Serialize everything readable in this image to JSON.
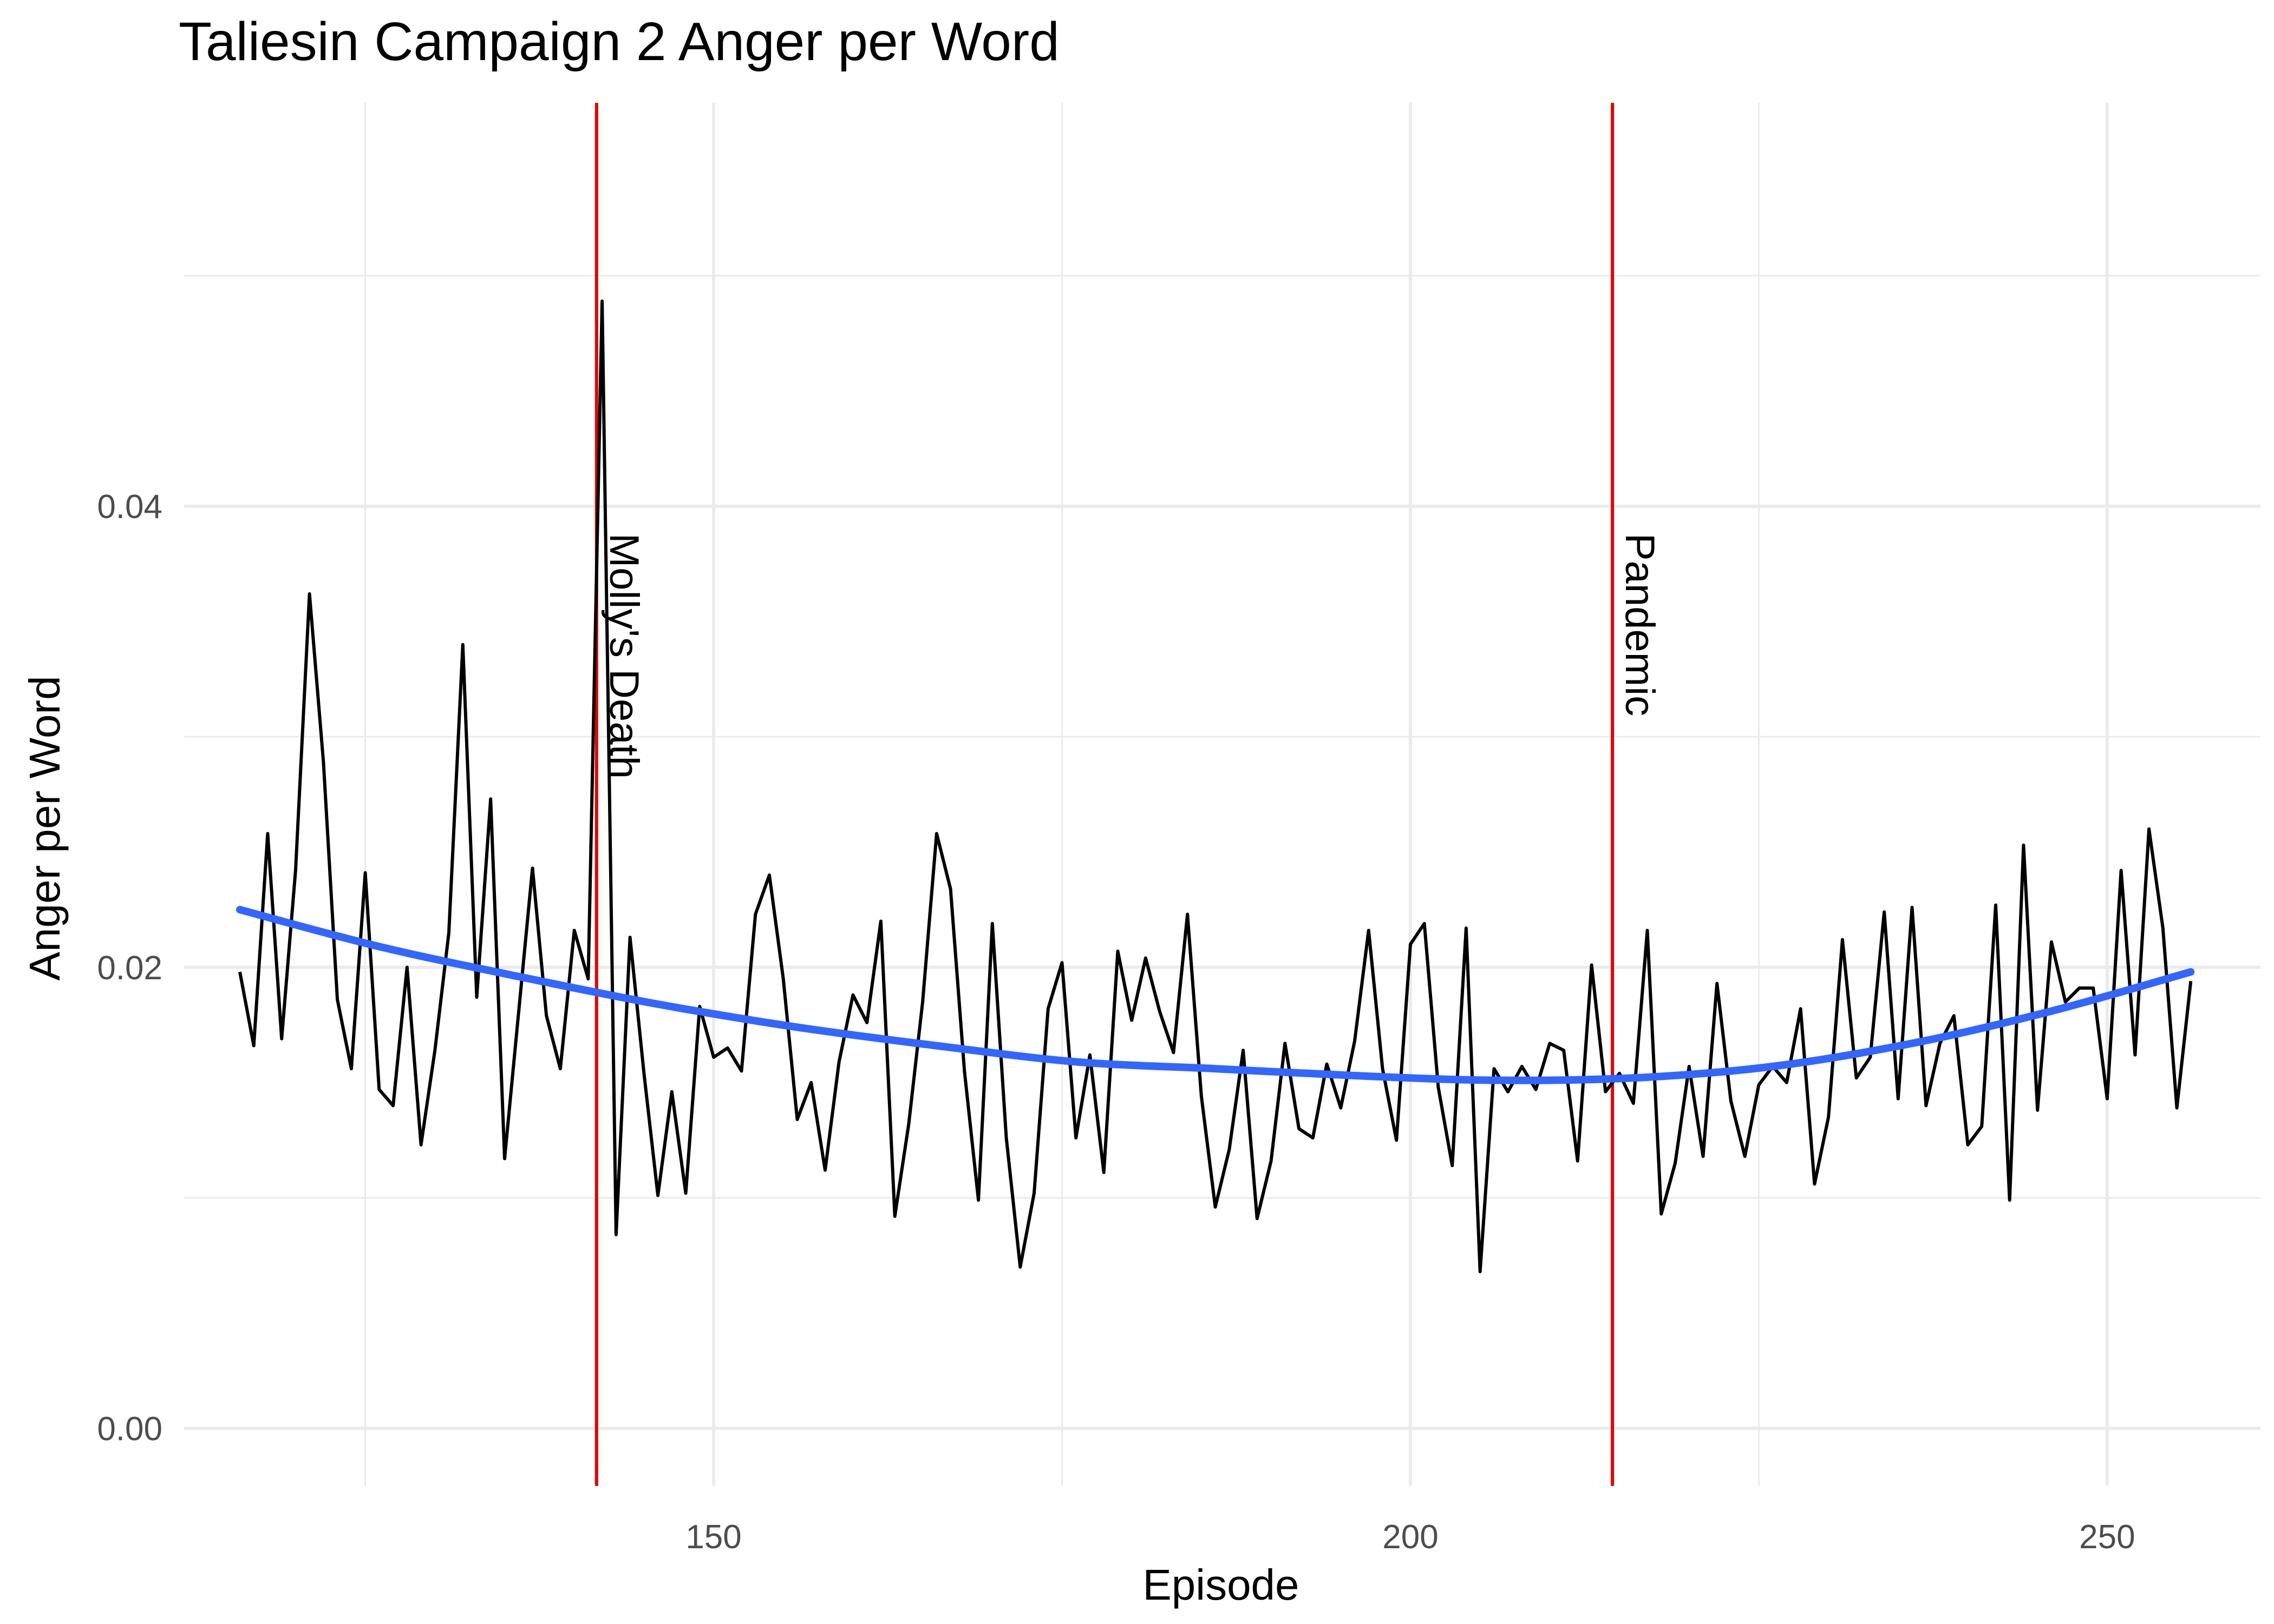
{
  "chart_data": {
    "type": "line",
    "title": "Taliesin Campaign 2 Anger per Word",
    "xlabel": "Episode",
    "ylabel": "Anger per Word",
    "xlim": [
      112,
      261
    ],
    "ylim": [
      -0.0025,
      0.0575
    ],
    "xticks": [
      150,
      200,
      250
    ],
    "yticks": [
      0.0,
      0.02,
      0.04
    ],
    "ytick_labels": [
      "0.00",
      "0.02",
      "0.04"
    ],
    "xminor": [
      125,
      175,
      225
    ],
    "yminor": [
      0.01,
      0.03,
      0.05
    ],
    "grid": true,
    "legend": "none",
    "colors": {
      "series": "#000000",
      "smooth": "#3366ff",
      "events": "#e60000",
      "grid": "#ebebeb"
    },
    "events": [
      {
        "x": 141.6,
        "label": "Molly's Death"
      },
      {
        "x": 214.5,
        "label": "Pandemic"
      }
    ],
    "series": [
      {
        "x": [
          116,
          117,
          118,
          119,
          120,
          121,
          122,
          123,
          124,
          125,
          126,
          127,
          128,
          129,
          130,
          131,
          132,
          133,
          134,
          135,
          136,
          137,
          138,
          139,
          140,
          141,
          142,
          143,
          144,
          145,
          146,
          147,
          148,
          149,
          150,
          151,
          152,
          153,
          154,
          155,
          156,
          157,
          158,
          159,
          160,
          161,
          162,
          163,
          164,
          165,
          166,
          167,
          168,
          169,
          170,
          171,
          172,
          173,
          174,
          175,
          176,
          177,
          178,
          179,
          180,
          181,
          182,
          183,
          184,
          185,
          186,
          187,
          188,
          189,
          190,
          191,
          192,
          193,
          194,
          195,
          196,
          197,
          198,
          199,
          200,
          201,
          202,
          203,
          204,
          205,
          206,
          207,
          208,
          209,
          210,
          211,
          212,
          213,
          214,
          215,
          216,
          217,
          218,
          219,
          220,
          221,
          222,
          223,
          224,
          225,
          226,
          227,
          228,
          229,
          230,
          231,
          232,
          233,
          234,
          235,
          236,
          237,
          238,
          239,
          240,
          241,
          242,
          243,
          244,
          245,
          246,
          247,
          248,
          249,
          250,
          251,
          252,
          253,
          254,
          255,
          256
        ],
        "values": [
          0.0198,
          0.0166,
          0.0258,
          0.0169,
          0.0242,
          0.0362,
          0.0289,
          0.0186,
          0.0156,
          0.0241,
          0.0147,
          0.014,
          0.02,
          0.0123,
          0.0164,
          0.0215,
          0.034,
          0.0187,
          0.0273,
          0.0117,
          0.018,
          0.0243,
          0.0179,
          0.0156,
          0.0216,
          0.0195,
          0.0489,
          0.0084,
          0.0213,
          0.0154,
          0.0101,
          0.0146,
          0.0102,
          0.0183,
          0.0161,
          0.0165,
          0.0155,
          0.0223,
          0.024,
          0.0195,
          0.0134,
          0.015,
          0.0112,
          0.0159,
          0.0188,
          0.0176,
          0.022,
          0.0092,
          0.0132,
          0.0185,
          0.0258,
          0.0234,
          0.0155,
          0.0099,
          0.0219,
          0.0126,
          0.007,
          0.0102,
          0.0182,
          0.0202,
          0.0126,
          0.0162,
          0.0111,
          0.0207,
          0.0177,
          0.0204,
          0.0181,
          0.0163,
          0.0223,
          0.0144,
          0.0096,
          0.0121,
          0.0164,
          0.0091,
          0.0116,
          0.0167,
          0.013,
          0.0126,
          0.0158,
          0.0139,
          0.0168,
          0.0216,
          0.0156,
          0.0125,
          0.021,
          0.0219,
          0.0148,
          0.0114,
          0.0217,
          0.0068,
          0.0156,
          0.0146,
          0.0157,
          0.0147,
          0.0167,
          0.0164,
          0.0116,
          0.0201,
          0.0146,
          0.0154,
          0.0141,
          0.0216,
          0.0093,
          0.0115,
          0.0157,
          0.0118,
          0.0193,
          0.0142,
          0.0118,
          0.0149,
          0.0157,
          0.015,
          0.0182,
          0.0106,
          0.0135,
          0.0212,
          0.0152,
          0.0161,
          0.0224,
          0.0143,
          0.0226,
          0.014,
          0.0167,
          0.0179,
          0.0123,
          0.0131,
          0.0227,
          0.0099,
          0.0253,
          0.0138,
          0.0211,
          0.0185,
          0.0191,
          0.0191,
          0.0143,
          0.0242,
          0.0162,
          0.026,
          0.0217,
          0.0139,
          0.0194
        ]
      },
      {
        "x": [
          116,
          126,
          136,
          146,
          156,
          166,
          176,
          186,
          196,
          206,
          216,
          226,
          236,
          246,
          256
        ],
        "values": [
          0.0225,
          0.0209,
          0.0196,
          0.0184,
          0.0174,
          0.0166,
          0.0159,
          0.0156,
          0.0153,
          0.0151,
          0.0152,
          0.0157,
          0.0167,
          0.0181,
          0.0198
        ]
      }
    ]
  }
}
